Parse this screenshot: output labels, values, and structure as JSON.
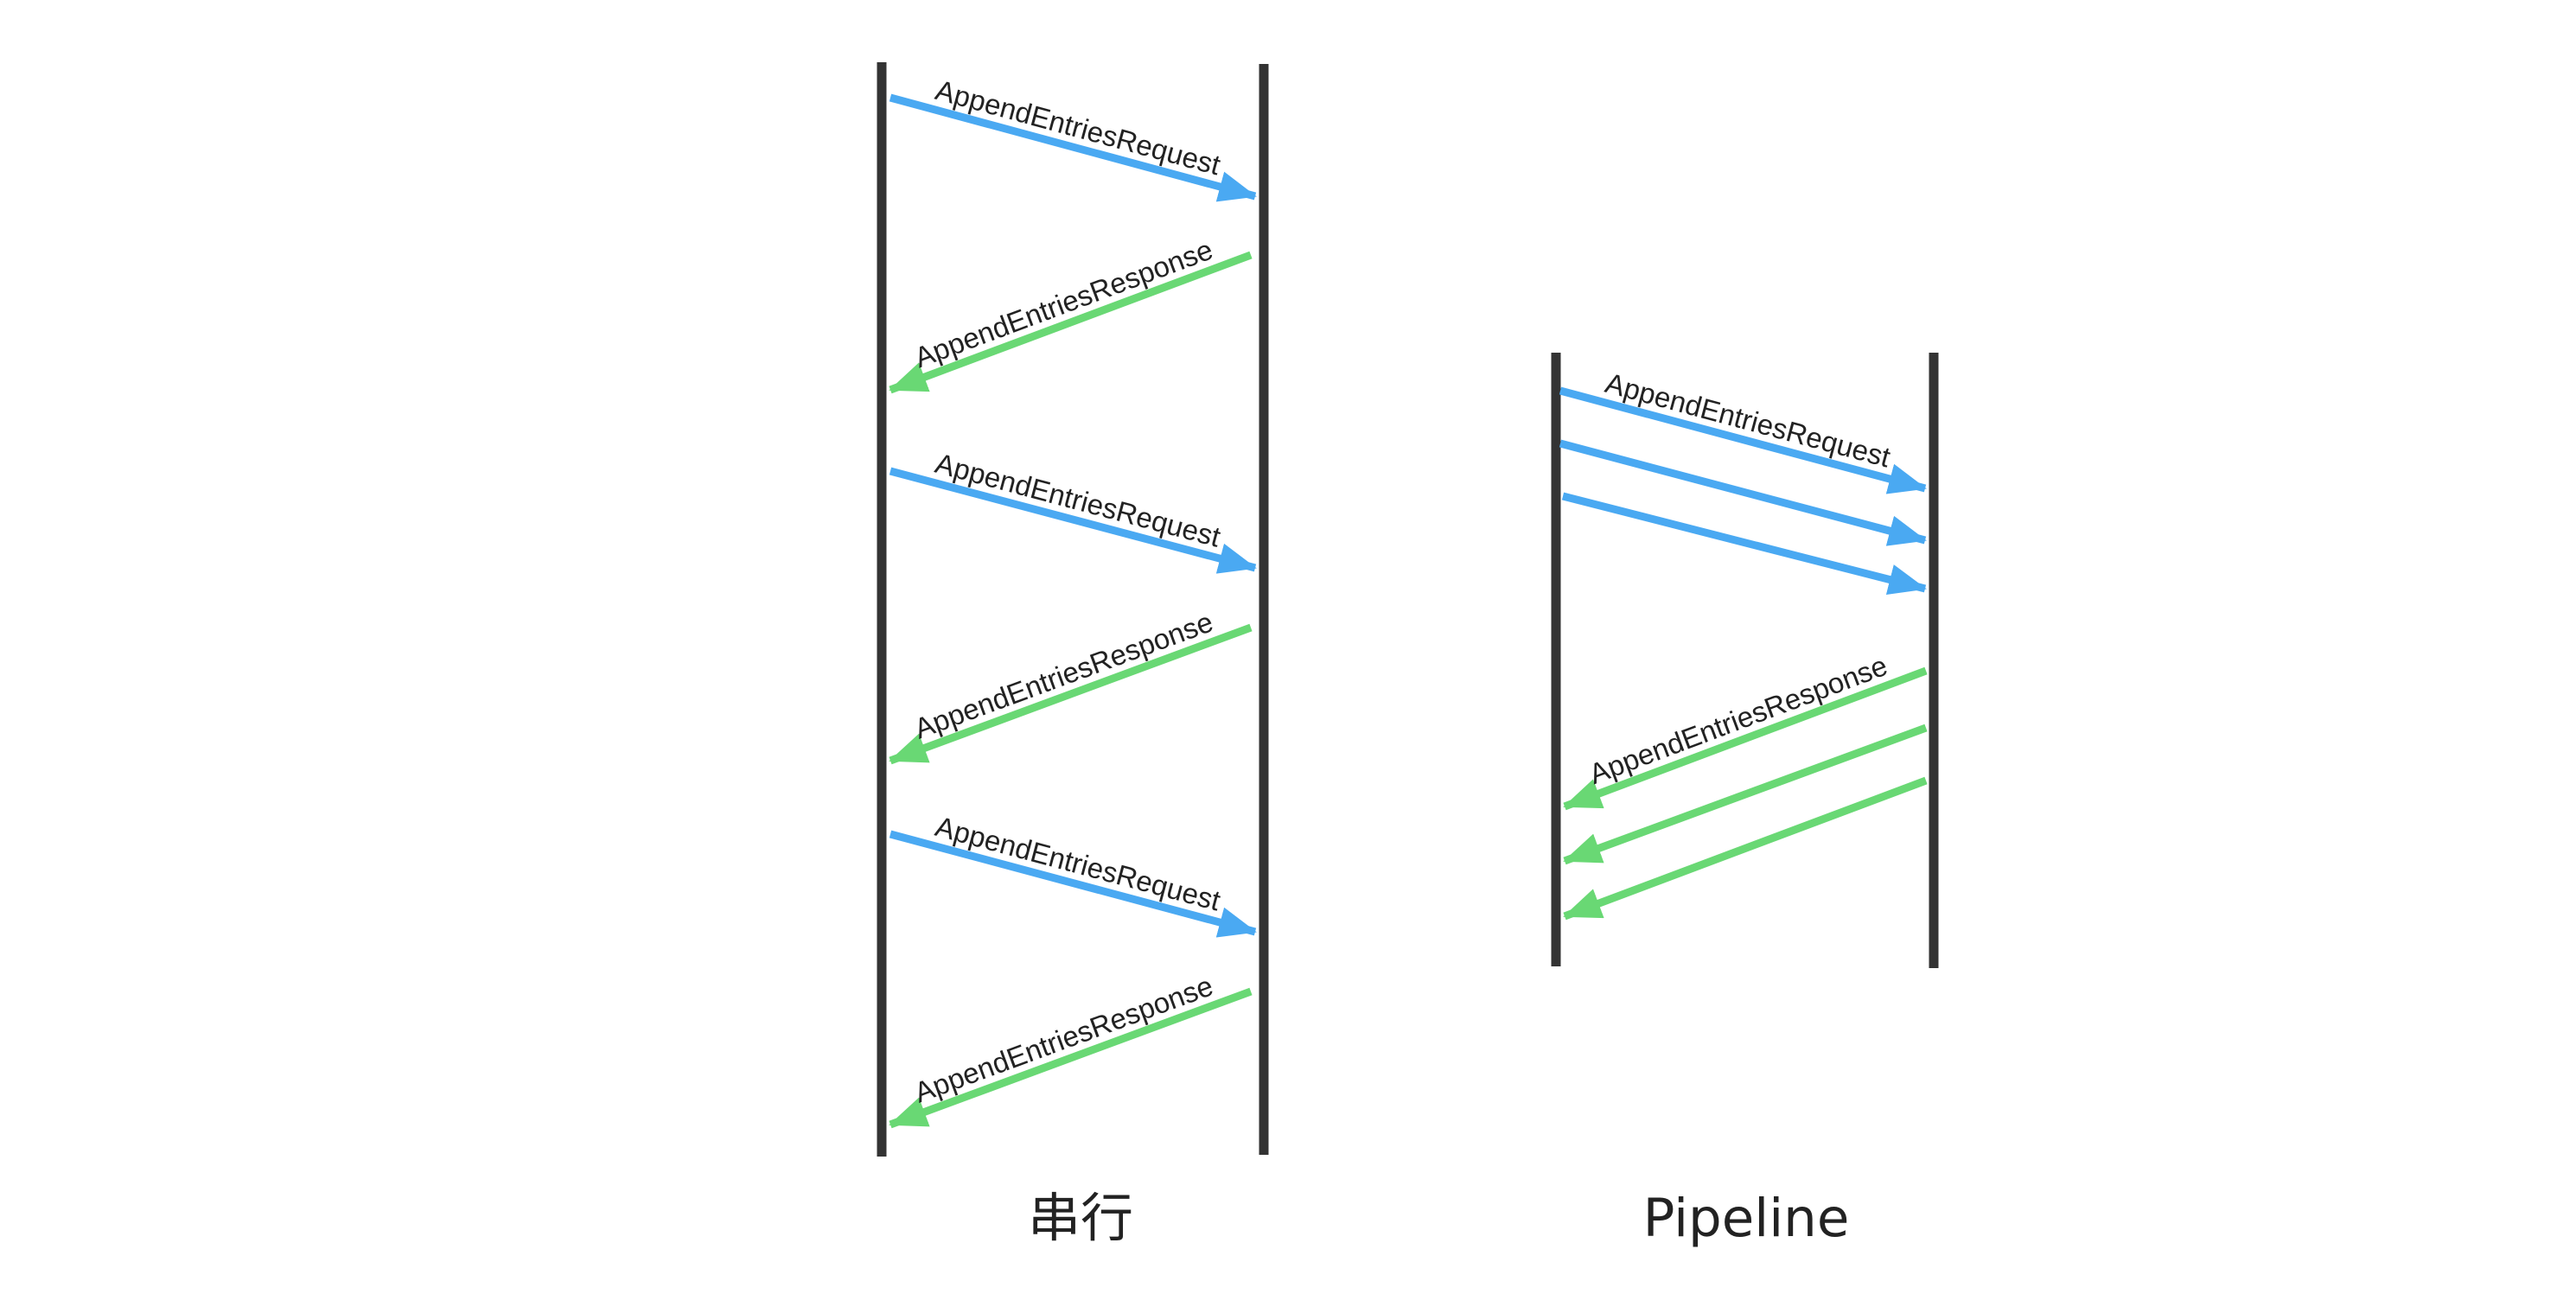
{
  "colors": {
    "lane": "#333333",
    "request": "#4aa9f2",
    "response": "#69d874",
    "label": "#222222",
    "background": "#ffffff"
  },
  "serial": {
    "caption": "串行",
    "messages": [
      {
        "kind": "request",
        "label": "AppendEntriesRequest"
      },
      {
        "kind": "response",
        "label": "AppendEntriesResponse"
      },
      {
        "kind": "request",
        "label": "AppendEntriesRequest"
      },
      {
        "kind": "response",
        "label": "AppendEntriesResponse"
      },
      {
        "kind": "request",
        "label": "AppendEntriesRequest"
      },
      {
        "kind": "response",
        "label": "AppendEntriesResponse"
      }
    ]
  },
  "pipeline": {
    "caption": "Pipeline",
    "messages": [
      {
        "kind": "request",
        "label": "AppendEntriesRequest"
      },
      {
        "kind": "request",
        "label": ""
      },
      {
        "kind": "request",
        "label": ""
      },
      {
        "kind": "response",
        "label": "AppendEntriesResponse"
      },
      {
        "kind": "response",
        "label": ""
      },
      {
        "kind": "response",
        "label": ""
      }
    ]
  }
}
